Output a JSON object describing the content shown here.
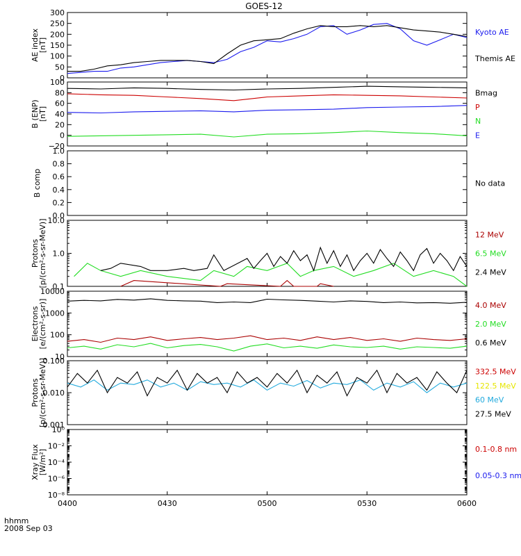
{
  "title": "GOES-12",
  "date_label": "2008 Sep 03",
  "time_label": "hhmm",
  "no_data_text": "No data",
  "colors": {
    "black": "#000000",
    "red": "#cc0000",
    "green": "#22dd22",
    "blue": "#1a1aee",
    "cyan": "#22aadd",
    "yellow": "#e6e600",
    "darkred": "#aa0000"
  },
  "chart_data": [
    {
      "id": "ae",
      "type": "line",
      "ylabel": [
        "AE index",
        "[nT]"
      ],
      "ylim": [
        0,
        300
      ],
      "log": false,
      "yticks": [
        0,
        50,
        100,
        150,
        200,
        250,
        300
      ],
      "ytick_labels": [
        "0",
        "50",
        "100",
        "150",
        "200",
        "250",
        "300"
      ],
      "x_range": [
        "0400",
        "0600"
      ],
      "series": [
        {
          "name": "Kyoto AE",
          "color": "blue",
          "x": [
            0,
            4,
            8,
            12,
            16,
            20,
            24,
            28,
            32,
            36,
            40,
            44,
            48,
            52,
            56,
            60,
            64,
            68,
            72,
            76,
            80,
            84,
            88,
            92,
            96,
            100,
            104,
            108,
            112,
            116,
            120
          ],
          "y": [
            20,
            25,
            30,
            30,
            45,
            50,
            60,
            70,
            75,
            80,
            75,
            70,
            85,
            120,
            140,
            170,
            165,
            180,
            200,
            235,
            240,
            200,
            220,
            245,
            250,
            225,
            170,
            150,
            175,
            200,
            185
          ]
        },
        {
          "name": "Themis AE",
          "color": "black",
          "x": [
            0,
            4,
            8,
            12,
            16,
            20,
            24,
            28,
            32,
            36,
            40,
            44,
            48,
            52,
            56,
            60,
            64,
            68,
            72,
            76,
            80,
            84,
            88,
            92,
            96,
            100,
            104,
            108,
            112,
            116,
            120
          ],
          "y": [
            30,
            30,
            40,
            55,
            60,
            70,
            75,
            80,
            80,
            80,
            75,
            65,
            110,
            150,
            170,
            175,
            180,
            205,
            225,
            240,
            235,
            235,
            240,
            235,
            240,
            230,
            220,
            215,
            210,
            200,
            190
          ]
        }
      ]
    },
    {
      "id": "b",
      "type": "line",
      "ylabel": [
        "B (ENP)",
        "[nT]"
      ],
      "ylim": [
        -20,
        100
      ],
      "log": false,
      "yticks": [
        -20,
        0,
        20,
        40,
        60,
        80,
        100
      ],
      "ytick_labels": [
        "−20",
        "0",
        "20",
        "40",
        "60",
        "80",
        "100"
      ],
      "series": [
        {
          "name": "Bmag",
          "color": "black",
          "x": [
            0,
            10,
            20,
            30,
            40,
            50,
            60,
            70,
            80,
            90,
            100,
            110,
            120
          ],
          "y": [
            88,
            87,
            89,
            88,
            86,
            85,
            87,
            88,
            90,
            92,
            91,
            90,
            89
          ]
        },
        {
          "name": "P",
          "color": "red",
          "x": [
            0,
            10,
            20,
            30,
            40,
            50,
            60,
            70,
            80,
            90,
            100,
            110,
            120
          ],
          "y": [
            78,
            76,
            75,
            72,
            69,
            65,
            72,
            74,
            76,
            75,
            74,
            72,
            70
          ]
        },
        {
          "name": "N",
          "color": "green",
          "x": [
            0,
            10,
            20,
            30,
            40,
            50,
            60,
            70,
            80,
            90,
            100,
            110,
            120
          ],
          "y": [
            -2,
            -1,
            0,
            1,
            2,
            -3,
            2,
            3,
            5,
            8,
            5,
            3,
            -1
          ]
        },
        {
          "name": "E",
          "color": "blue",
          "x": [
            0,
            10,
            20,
            30,
            40,
            50,
            60,
            70,
            80,
            90,
            100,
            110,
            120
          ],
          "y": [
            43,
            42,
            44,
            45,
            46,
            44,
            47,
            48,
            49,
            52,
            53,
            54,
            56
          ]
        }
      ]
    },
    {
      "id": "bcomp",
      "type": "line",
      "ylabel": [
        "B comp"
      ],
      "ylim": [
        0,
        1
      ],
      "log": false,
      "yticks": [
        0,
        0.2,
        0.4,
        0.6,
        0.8,
        1.0
      ],
      "ytick_labels": [
        "0.0",
        "0.2",
        "0.4",
        "0.6",
        "0.8",
        "1.0"
      ],
      "series": []
    },
    {
      "id": "protons",
      "type": "line",
      "ylabel": [
        "Protons",
        "[p/(cm²-s-sr-MeV)]"
      ],
      "ylim": [
        0.1,
        10
      ],
      "log": true,
      "yticks": [
        0.1,
        1,
        10
      ],
      "ytick_labels": [
        "0.1",
        "1.0",
        "10.0"
      ],
      "series": [
        {
          "name": "12 MeV",
          "color": "darkred",
          "x": [
            16,
            20,
            46,
            48,
            64,
            66,
            68,
            75,
            76,
            80
          ],
          "y": [
            0.1,
            0.15,
            0.1,
            0.12,
            0.1,
            0.15,
            0.1,
            0.1,
            0.12,
            0.1
          ]
        },
        {
          "name": "6.5 MeV",
          "color": "green",
          "x": [
            2,
            6,
            10,
            16,
            22,
            30,
            40,
            44,
            50,
            54,
            60,
            66,
            70,
            74,
            80,
            86,
            92,
            98,
            104,
            110,
            116,
            120
          ],
          "y": [
            0.2,
            0.5,
            0.3,
            0.2,
            0.3,
            0.2,
            0.15,
            0.3,
            0.2,
            0.4,
            0.3,
            0.5,
            0.2,
            0.3,
            0.4,
            0.2,
            0.3,
            0.5,
            0.2,
            0.3,
            0.2,
            0.1
          ]
        },
        {
          "name": "2.4 MeV",
          "color": "black",
          "x": [
            10,
            13,
            16,
            22,
            25,
            30,
            35,
            38,
            42,
            44,
            47,
            54,
            56,
            58,
            60,
            62,
            64,
            66,
            68,
            70,
            72,
            74,
            76,
            78,
            80,
            82,
            84,
            86,
            88,
            90,
            92,
            94,
            96,
            98,
            100,
            102,
            104,
            106,
            108,
            110,
            112,
            114,
            116,
            118,
            120
          ],
          "y": [
            0.3,
            0.35,
            0.5,
            0.4,
            0.3,
            0.3,
            0.35,
            0.3,
            0.35,
            0.9,
            0.3,
            0.7,
            0.35,
            0.6,
            1.0,
            0.4,
            0.8,
            0.5,
            1.2,
            0.6,
            0.9,
            0.3,
            1.5,
            0.5,
            1.2,
            0.4,
            0.9,
            0.3,
            0.6,
            1.0,
            0.5,
            1.3,
            0.7,
            0.4,
            1.1,
            0.6,
            0.3,
            0.9,
            1.4,
            0.5,
            1.0,
            0.6,
            0.3,
            0.8,
            0.4
          ]
        }
      ]
    },
    {
      "id": "electrons",
      "type": "line",
      "ylabel": [
        "Electrons",
        "[e/(cm²-s-sr)]"
      ],
      "ylim": [
        10,
        10000
      ],
      "log": true,
      "yticks": [
        10,
        100,
        1000,
        10000
      ],
      "ytick_labels": [
        "10",
        "100",
        "1000",
        "10000"
      ],
      "series": [
        {
          "name": "4.0 MeV",
          "color": "darkred",
          "x": [
            0,
            5,
            10,
            15,
            20,
            25,
            30,
            35,
            40,
            45,
            50,
            55,
            60,
            65,
            70,
            75,
            80,
            85,
            90,
            95,
            100,
            105,
            110,
            115,
            120
          ],
          "y": [
            50,
            60,
            45,
            70,
            60,
            80,
            55,
            65,
            75,
            60,
            70,
            90,
            60,
            70,
            55,
            80,
            60,
            75,
            55,
            65,
            50,
            70,
            60,
            55,
            65
          ]
        },
        {
          "name": "2.0 MeV",
          "color": "green",
          "x": [
            0,
            5,
            10,
            15,
            20,
            25,
            30,
            35,
            40,
            45,
            50,
            55,
            60,
            65,
            70,
            75,
            80,
            85,
            90,
            95,
            100,
            105,
            110,
            115,
            120
          ],
          "y": [
            25,
            30,
            22,
            35,
            28,
            40,
            25,
            32,
            36,
            28,
            18,
            30,
            38,
            25,
            30,
            24,
            34,
            28,
            26,
            30,
            22,
            28,
            26,
            24,
            30
          ]
        },
        {
          "name": "0.6 MeV",
          "color": "black",
          "x": [
            0,
            5,
            10,
            15,
            20,
            25,
            30,
            35,
            40,
            45,
            50,
            55,
            60,
            65,
            70,
            75,
            80,
            85,
            90,
            95,
            100,
            105,
            110,
            115,
            120
          ],
          "y": [
            3500,
            3800,
            3600,
            4200,
            3900,
            4500,
            3800,
            3600,
            3500,
            3000,
            3200,
            3000,
            4300,
            4000,
            3800,
            3500,
            3200,
            3600,
            3400,
            3000,
            3200,
            2900,
            3000,
            2800,
            3100
          ]
        }
      ]
    },
    {
      "id": "hiprotons",
      "type": "line",
      "ylabel": [
        "Protons",
        "[p/(cm²-s-sr-MeV)]"
      ],
      "ylim": [
        0.001,
        0.1
      ],
      "log": true,
      "yticks": [
        0.001,
        0.01,
        0.1
      ],
      "ytick_labels": [
        "0.001",
        "0.010",
        "0.100"
      ],
      "series": [
        {
          "name": "332.5 MeV",
          "color": "red",
          "x": [],
          "y": []
        },
        {
          "name": "122.5 MeV",
          "color": "yellow",
          "x": [],
          "y": []
        },
        {
          "name": "60 MeV",
          "color": "cyan",
          "x": [
            0,
            4,
            8,
            12,
            16,
            20,
            24,
            28,
            32,
            36,
            40,
            44,
            48,
            52,
            56,
            60,
            64,
            68,
            72,
            76,
            80,
            84,
            88,
            92,
            96,
            100,
            104,
            108,
            112,
            116,
            120
          ],
          "y": [
            0.02,
            0.015,
            0.025,
            0.012,
            0.02,
            0.018,
            0.025,
            0.015,
            0.02,
            0.012,
            0.022,
            0.018,
            0.02,
            0.015,
            0.025,
            0.012,
            0.02,
            0.016,
            0.024,
            0.014,
            0.02,
            0.018,
            0.025,
            0.012,
            0.02,
            0.015,
            0.022,
            0.01,
            0.02,
            0.015,
            0.02
          ]
        },
        {
          "name": "27.5 MeV",
          "color": "black",
          "x": [
            0,
            3,
            6,
            9,
            12,
            15,
            18,
            21,
            24,
            27,
            30,
            33,
            36,
            39,
            42,
            45,
            48,
            51,
            54,
            57,
            60,
            63,
            66,
            69,
            72,
            75,
            78,
            81,
            84,
            87,
            90,
            93,
            96,
            99,
            102,
            105,
            108,
            111,
            114,
            117,
            120
          ],
          "y": [
            0.015,
            0.04,
            0.02,
            0.05,
            0.01,
            0.03,
            0.02,
            0.045,
            0.008,
            0.03,
            0.02,
            0.05,
            0.012,
            0.04,
            0.02,
            0.03,
            0.01,
            0.045,
            0.02,
            0.03,
            0.015,
            0.04,
            0.02,
            0.05,
            0.01,
            0.035,
            0.02,
            0.045,
            0.008,
            0.03,
            0.02,
            0.05,
            0.01,
            0.04,
            0.02,
            0.03,
            0.012,
            0.045,
            0.02,
            0.01,
            0.05
          ]
        }
      ]
    },
    {
      "id": "xray",
      "type": "line",
      "ylabel": [
        "Xray Flux",
        "[W/m²]"
      ],
      "ylim": [
        1e-08,
        1
      ],
      "log": true,
      "yticks": [
        1e-08,
        1e-06,
        0.0001,
        0.01,
        1
      ],
      "ytick_labels": [
        "10⁻⁸",
        "10⁻⁶",
        "10⁻⁴",
        "10⁻²",
        "10⁰"
      ],
      "series": [
        {
          "name": "0.1-0.8 nm",
          "color": "red",
          "x": [],
          "y": []
        },
        {
          "name": "0.05-0.3 nm",
          "color": "blue",
          "x": [],
          "y": []
        }
      ]
    }
  ],
  "x_axis": {
    "ticks": [
      0,
      30,
      60,
      90,
      120
    ],
    "tick_labels": [
      "0400",
      "0430",
      "0500",
      "0530",
      "0600"
    ]
  }
}
